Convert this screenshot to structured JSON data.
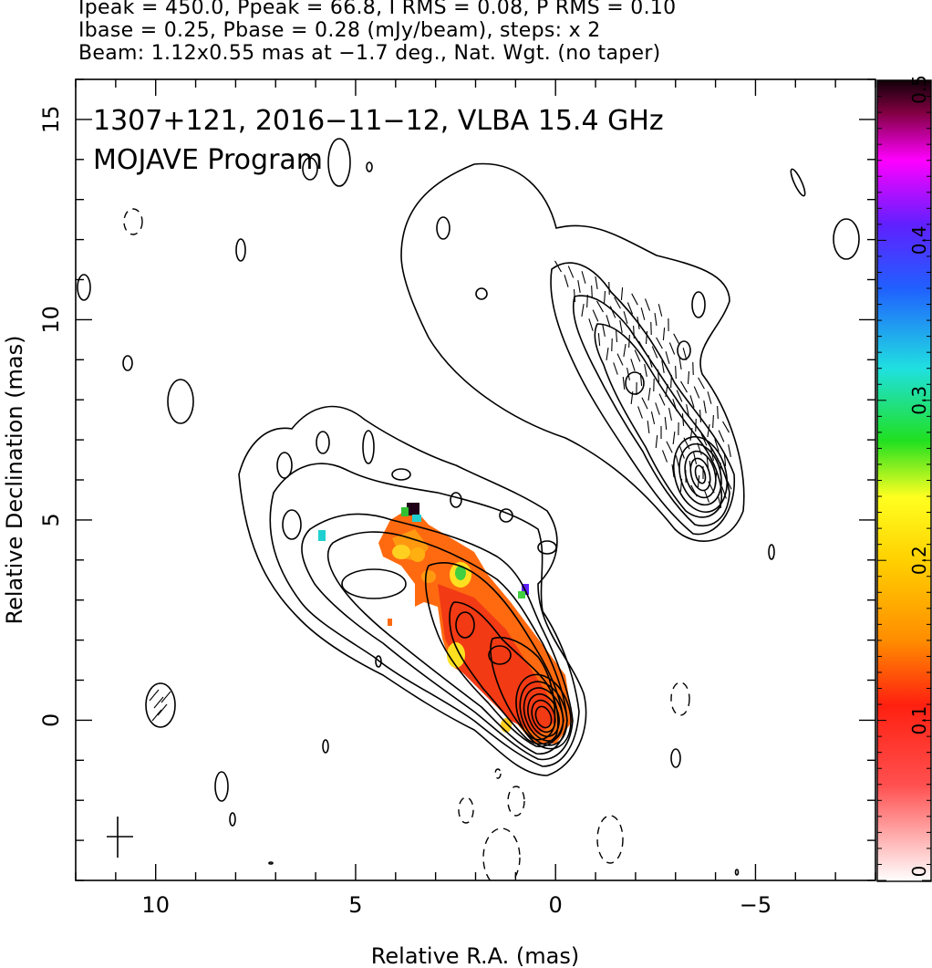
{
  "header": {
    "line1": "Ipeak = 450.0, Ppeak = 66.8, I RMS = 0.08, P RMS = 0.10",
    "line2": "Ibase = 0.25, Pbase = 0.28 (mJy/beam), steps: x 2",
    "line3": "Beam: 1.12x0.55 mas at −1.7 deg., Nat. Wgt. (no taper)"
  },
  "chart_data": {
    "type": "heatmap",
    "title": "1307+121, 2016−11−12, VLBA 15.4 GHz",
    "subtitle": "MOJAVE Program",
    "xlabel": "Relative R.A. (mas)",
    "ylabel": "Relative Declination (mas)",
    "xlim": [
      12,
      -8
    ],
    "ylim": [
      -4,
      16
    ],
    "x_ticks": [
      10,
      5,
      0,
      -5
    ],
    "x_tick_labels": [
      "10",
      "5",
      "0",
      "−5"
    ],
    "y_ticks": [
      0,
      5,
      10,
      15
    ],
    "y_tick_labels": [
      "0",
      "5",
      "10",
      "15"
    ],
    "colorbar": {
      "min": 0,
      "max": 0.5,
      "ticks": [
        0,
        0.1,
        0.2,
        0.3,
        0.4,
        0.5
      ],
      "tick_labels": [
        "0",
        "0.1",
        "0.2",
        "0.3",
        "0.4",
        "0.5"
      ],
      "colors": [
        "#ffffff",
        "#ff2020",
        "#ff8c00",
        "#ffe000",
        "#20e020",
        "#20e0e0",
        "#2040ff",
        "#ff00ff",
        "#200010"
      ]
    },
    "core": {
      "x": 0,
      "y": 0
    },
    "secondary_panel_core": {
      "x": -3.8,
      "y": 6.3
    },
    "polarization_regions": [
      {
        "x": 0.1,
        "y": 0.2,
        "value": 0.1
      },
      {
        "x": 0.8,
        "y": 0.7,
        "value": 0.09
      },
      {
        "x": 1.5,
        "y": 1.4,
        "value": 0.11
      },
      {
        "x": 2.2,
        "y": 2.3,
        "value": 0.14
      },
      {
        "x": 2.8,
        "y": 3.0,
        "value": 0.12
      },
      {
        "x": 3.5,
        "y": 3.8,
        "value": 0.13
      },
      {
        "x": 3.8,
        "y": 4.4,
        "value": 0.15
      },
      {
        "x": 2.2,
        "y": 3.7,
        "value": 0.22
      },
      {
        "x": 3.4,
        "y": 5.2,
        "value": 0.45
      },
      {
        "x": 5.7,
        "y": 4.6,
        "value": 0.28
      }
    ],
    "beam": {
      "major": 1.12,
      "minor": 0.55,
      "pa": -1.7
    }
  }
}
